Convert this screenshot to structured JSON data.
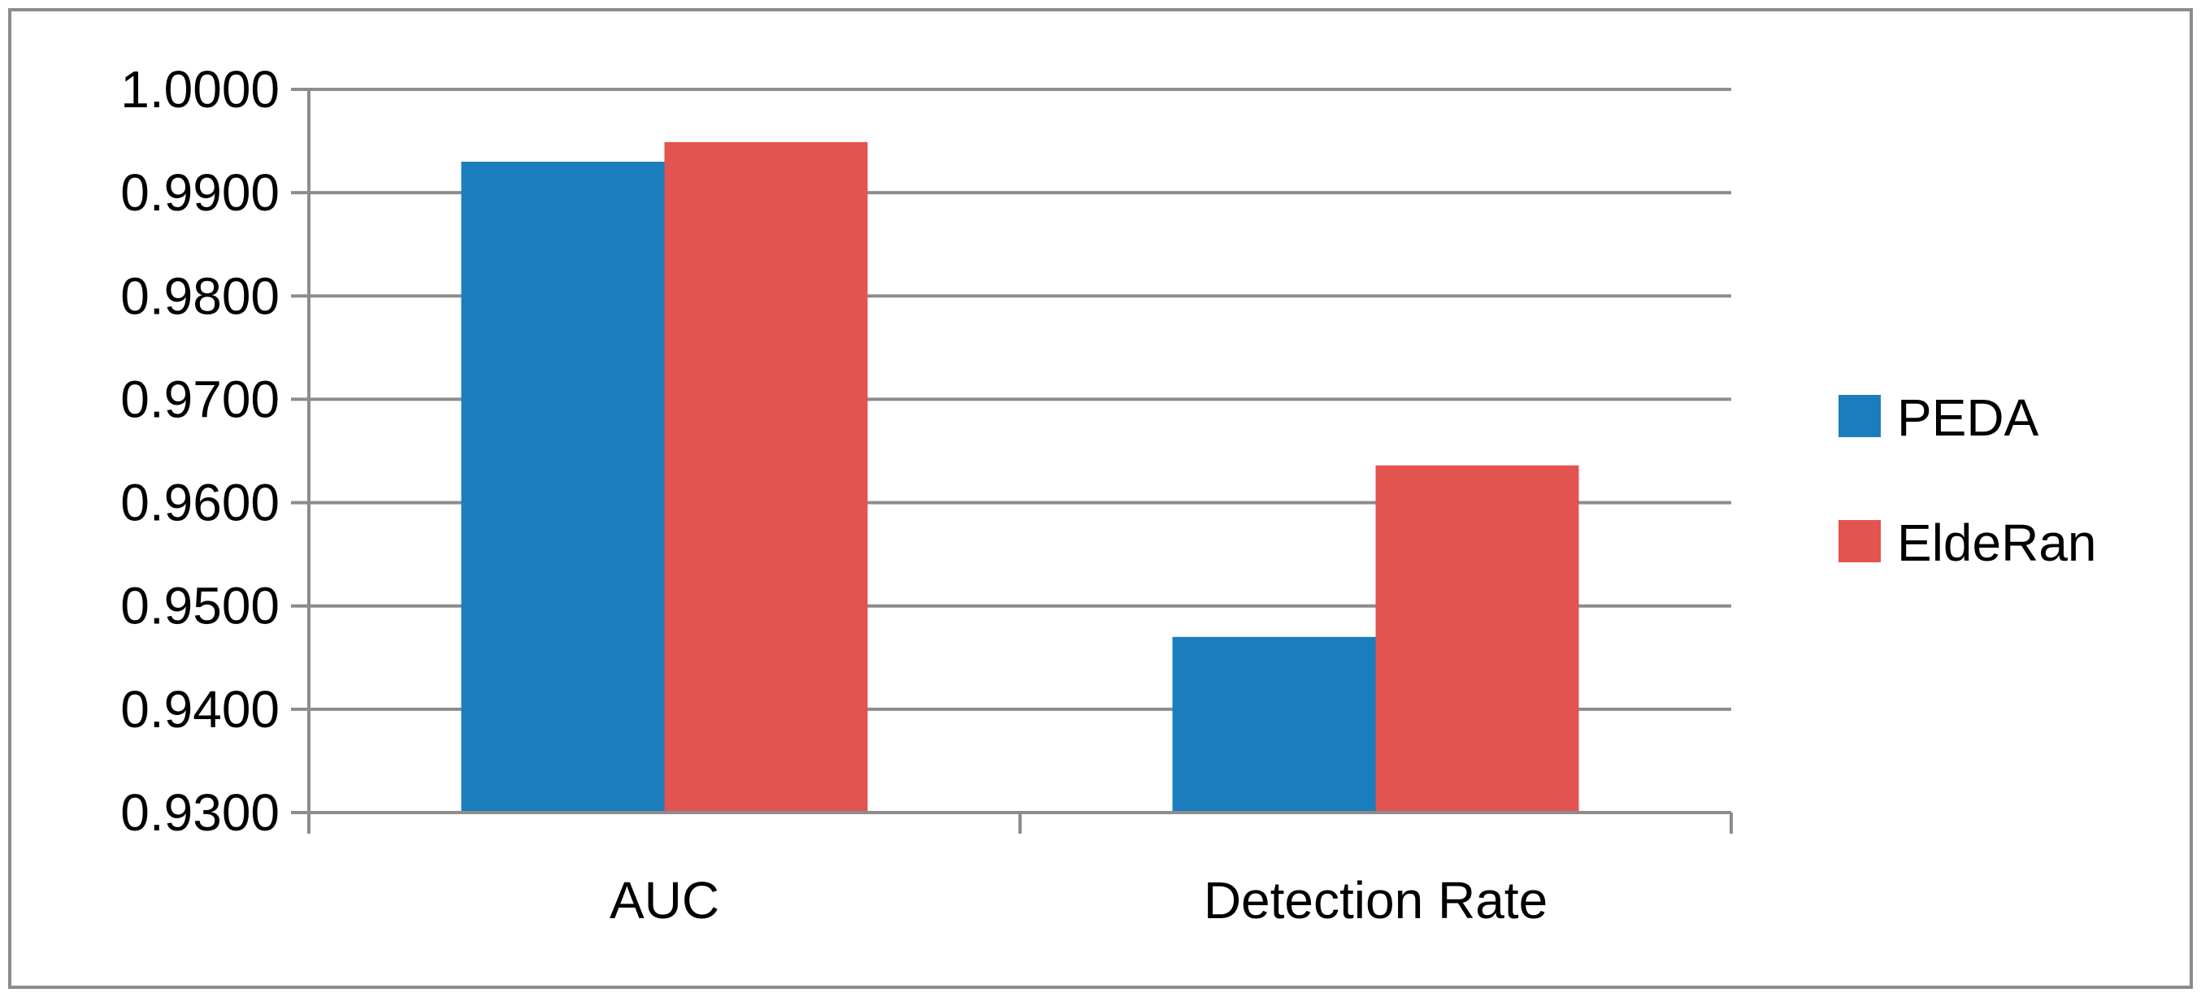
{
  "chart_data": {
    "type": "bar",
    "title": "",
    "xlabel": "",
    "ylabel": "",
    "categories": [
      "AUC",
      "Detection Rate"
    ],
    "series": [
      {
        "name": "PEDA",
        "values": [
          0.993,
          0.947
        ],
        "color": "#1a7ebc"
      },
      {
        "name": "EldeRan",
        "values": [
          0.9949,
          0.9636
        ],
        "color": "#e35350"
      }
    ],
    "ylim": [
      0.93,
      1.0
    ],
    "yticks": [
      "0.9300",
      "0.9400",
      "0.9500",
      "0.9600",
      "0.9700",
      "0.9800",
      "0.9900",
      "1.0000"
    ],
    "grid": true,
    "legend_position": "right"
  }
}
